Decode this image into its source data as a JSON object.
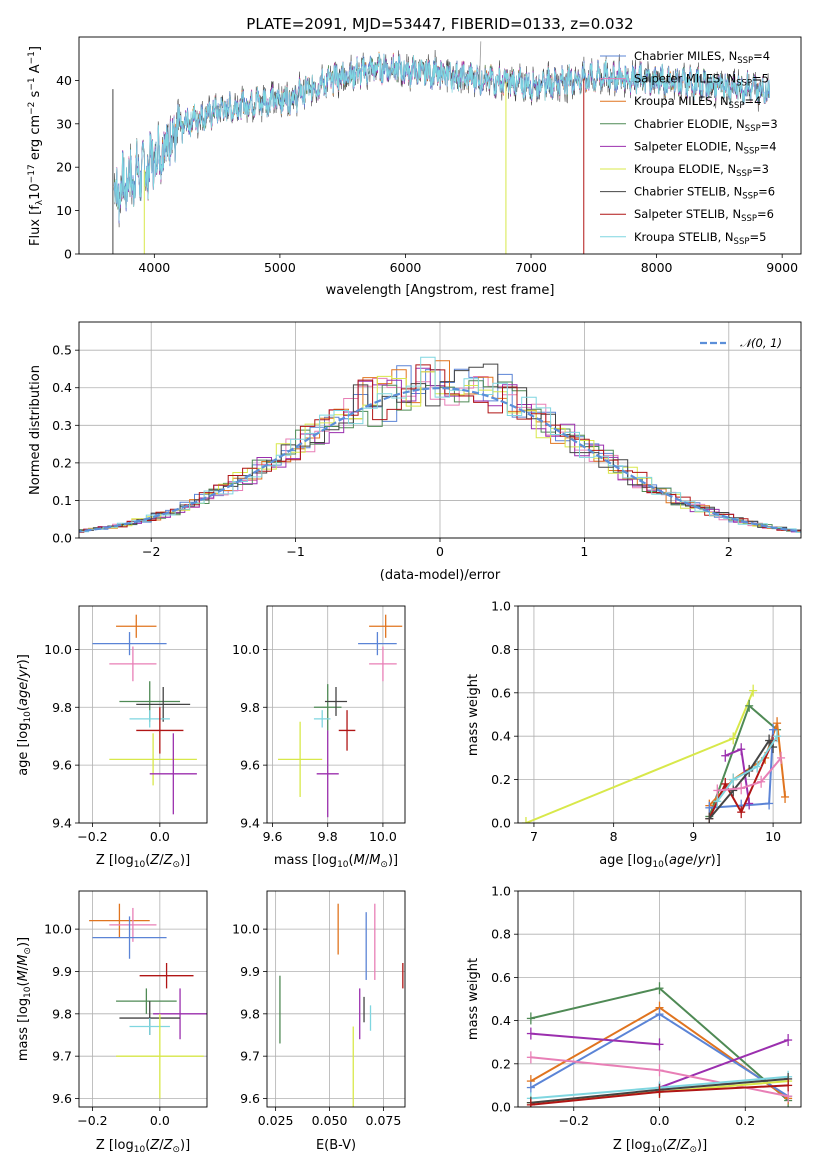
{
  "figure_title": "PLATE=2091, MJD=53447, FIBERID=0133, z=0.032",
  "colors": {
    "Chabrier MILES": "#5b84d6",
    "Salpeter MILES": "#e87fb6",
    "Kroupa MILES": "#e0741f",
    "Chabrier ELODIE": "#4f8a55",
    "Salpeter ELODIE": "#9b2fae",
    "Kroupa ELODIE": "#d8e84a",
    "Chabrier STELIB": "#444444",
    "Salpeter STELIB": "#b01515",
    "Kroupa STELIB": "#7fd6e0",
    "normal_curve": "#5b8fd9"
  },
  "chart_data": [
    {
      "id": "spectrum",
      "type": "line",
      "xlabel": "wavelength [Angstrom, rest frame]",
      "ylabel": "Flux [f_λ 10^-17 erg cm^-2 s^-1 A^-1]",
      "xlim": [
        3400,
        9150
      ],
      "ylim": [
        0,
        50
      ],
      "xticks": [
        4000,
        5000,
        6000,
        7000,
        8000,
        9000
      ],
      "yticks": [
        0,
        10,
        20,
        30,
        40
      ],
      "grid": false,
      "legend_position": "top-right",
      "legend": [
        {
          "label": "Chabrier MILES, N",
          "sub": "SSP",
          "tail": "=4"
        },
        {
          "label": "Salpeter MILES, N",
          "sub": "SSP",
          "tail": "=5"
        },
        {
          "label": "Kroupa MILES, N",
          "sub": "SSP",
          "tail": "=4"
        },
        {
          "label": "Chabrier ELODIE, N",
          "sub": "SSP",
          "tail": "=3"
        },
        {
          "label": "Salpeter ELODIE, N",
          "sub": "SSP",
          "tail": "=4"
        },
        {
          "label": "Kroupa ELODIE, N",
          "sub": "SSP",
          "tail": "=3"
        },
        {
          "label": "Chabrier STELIB, N",
          "sub": "SSP",
          "tail": "=6"
        },
        {
          "label": "Salpeter STELIB, N",
          "sub": "SSP",
          "tail": "=6"
        },
        {
          "label": "Kroupa STELIB, N",
          "sub": "SSP",
          "tail": "=5"
        }
      ],
      "continuum": {
        "x": [
          3680,
          3800,
          3950,
          4100,
          4300,
          4500,
          4800,
          5100,
          5300,
          5500,
          5800,
          6100,
          6400,
          6700,
          7000,
          7300,
          7600,
          8000,
          8400,
          8900
        ],
        "y": [
          14,
          17,
          20,
          26,
          31,
          33,
          35,
          36,
          39,
          41,
          43,
          42,
          41,
          40,
          39,
          40,
          41,
          40,
          39,
          38
        ]
      },
      "data_range": [
        3680,
        8900
      ],
      "dropouts": [
        {
          "x": 3670,
          "series": "Chabrier STELIB"
        },
        {
          "x": 3920,
          "series": "Kroupa ELODIE"
        },
        {
          "x": 6800,
          "series": "Kroupa ELODIE"
        },
        {
          "x": 7420,
          "series": "Salpeter STELIB"
        }
      ],
      "spike": {
        "x": 6590,
        "y": 49
      }
    },
    {
      "id": "residuals",
      "type": "bar",
      "xlabel": "(data-model)/error",
      "ylabel": "Normed distribution",
      "xlim": [
        -2.5,
        2.5
      ],
      "ylim": [
        0,
        0.575
      ],
      "xticks": [
        -2,
        -1,
        0,
        1,
        2
      ],
      "yticks": [
        0.0,
        0.1,
        0.2,
        0.3,
        0.4,
        0.5
      ],
      "grid": true,
      "legend_position": "top-right",
      "legend": [
        "N(0,1)"
      ],
      "bin_width": 0.1
    },
    {
      "id": "age_vs_Z",
      "type": "scatter",
      "xlabel": "Z [log10(Z/Z⊙)]",
      "ylabel": "age [log10(age/yr)]",
      "xlim": [
        -0.24,
        0.14
      ],
      "ylim": [
        9.4,
        10.15
      ],
      "xticks": [
        -0.2,
        0.0
      ],
      "yticks": [
        9.4,
        9.6,
        9.8,
        10.0
      ],
      "grid": true,
      "points": [
        {
          "series": "Kroupa MILES",
          "x": -0.07,
          "y": 10.08,
          "xerr": 0.06,
          "yerr": 0.04
        },
        {
          "series": "Chabrier MILES",
          "x": -0.09,
          "y": 10.02,
          "xerr": 0.11,
          "yerr": 0.04
        },
        {
          "series": "Salpeter MILES",
          "x": -0.08,
          "y": 9.95,
          "xerr": 0.07,
          "yerr": 0.06
        },
        {
          "series": "Chabrier ELODIE",
          "x": -0.03,
          "y": 9.82,
          "xerr": 0.09,
          "yerr": 0.07
        },
        {
          "series": "Chabrier STELIB",
          "x": 0.01,
          "y": 9.81,
          "xerr": 0.08,
          "yerr": 0.06
        },
        {
          "series": "Kroupa STELIB",
          "x": -0.03,
          "y": 9.76,
          "xerr": 0.06,
          "yerr": 0.03
        },
        {
          "series": "Salpeter STELIB",
          "x": 0.0,
          "y": 9.72,
          "xerr": 0.07,
          "yerr": 0.08
        },
        {
          "series": "Kroupa ELODIE",
          "x": -0.02,
          "y": 9.62,
          "xerr": 0.13,
          "yerr": 0.09
        },
        {
          "series": "Salpeter ELODIE",
          "x": 0.04,
          "y": 9.57,
          "xerr": 0.07,
          "yerr": 0.14
        }
      ]
    },
    {
      "id": "age_vs_mass",
      "type": "scatter",
      "xlabel": "mass [log10(M/M⊙)]",
      "ylabel": "",
      "xlim": [
        9.58,
        10.08
      ],
      "ylim": [
        9.4,
        10.15
      ],
      "xticks": [
        9.6,
        9.8,
        10.0
      ],
      "yticks": [
        9.4,
        9.6,
        9.8,
        10.0
      ],
      "grid": true,
      "points": [
        {
          "series": "Kroupa MILES",
          "x": 10.01,
          "y": 10.08,
          "xerr": 0.06,
          "yerr": 0.04
        },
        {
          "series": "Chabrier MILES",
          "x": 9.98,
          "y": 10.02,
          "xerr": 0.07,
          "yerr": 0.04
        },
        {
          "series": "Salpeter MILES",
          "x": 10.0,
          "y": 9.95,
          "xerr": 0.05,
          "yerr": 0.06
        },
        {
          "series": "Chabrier ELODIE",
          "x": 9.8,
          "y": 9.8,
          "xerr": 0.05,
          "yerr": 0.08
        },
        {
          "series": "Chabrier STELIB",
          "x": 9.83,
          "y": 9.82,
          "xerr": 0.04,
          "yerr": 0.05
        },
        {
          "series": "Kroupa STELIB",
          "x": 9.78,
          "y": 9.76,
          "xerr": 0.03,
          "yerr": 0.03
        },
        {
          "series": "Salpeter STELIB",
          "x": 9.87,
          "y": 9.72,
          "xerr": 0.03,
          "yerr": 0.07
        },
        {
          "series": "Kroupa ELODIE",
          "x": 9.7,
          "y": 9.62,
          "xerr": 0.08,
          "yerr": 0.13
        },
        {
          "series": "Salpeter ELODIE",
          "x": 9.8,
          "y": 9.57,
          "xerr": 0.04,
          "yerr": 0.15
        }
      ]
    },
    {
      "id": "massweight_vs_age",
      "type": "line",
      "xlabel": "age [log10(age/yr)]",
      "ylabel": "mass weight",
      "xlim": [
        6.8,
        10.35
      ],
      "ylim": [
        0,
        1.0
      ],
      "xticks": [
        7,
        8,
        9,
        10
      ],
      "yticks": [
        0.0,
        0.2,
        0.4,
        0.6,
        0.8,
        1.0
      ],
      "grid": true,
      "series": [
        {
          "name": "Kroupa ELODIE",
          "x": [
            6.9,
            9.5,
            9.75
          ],
          "y": [
            0.0,
            0.39,
            0.61
          ]
        },
        {
          "name": "Chabrier ELODIE",
          "x": [
            9.2,
            9.7,
            10.05
          ],
          "y": [
            0.03,
            0.54,
            0.43
          ]
        },
        {
          "name": "Kroupa MILES",
          "x": [
            9.2,
            9.5,
            9.9,
            10.05,
            10.15
          ],
          "y": [
            0.08,
            0.2,
            0.3,
            0.46,
            0.12
          ]
        },
        {
          "name": "Chabrier MILES",
          "x": [
            9.2,
            9.6,
            9.95,
            10.0
          ],
          "y": [
            0.07,
            0.08,
            0.09,
            0.43
          ]
        },
        {
          "name": "Salpeter ELODIE",
          "x": [
            9.4,
            9.6,
            9.7
          ],
          "y": [
            0.31,
            0.34,
            0.09
          ]
        },
        {
          "name": "Salpeter STELIB",
          "x": [
            9.2,
            9.4,
            9.6,
            10.0
          ],
          "y": [
            0.02,
            0.18,
            0.05,
            0.38
          ]
        },
        {
          "name": "Chabrier STELIB",
          "x": [
            9.2,
            9.5,
            9.7,
            9.95,
            10.0
          ],
          "y": [
            0.02,
            0.15,
            0.24,
            0.38,
            0.35
          ]
        },
        {
          "name": "Kroupa STELIB",
          "x": [
            9.3,
            9.5,
            9.8,
            10.05
          ],
          "y": [
            0.1,
            0.2,
            0.26,
            0.4
          ]
        },
        {
          "name": "Salpeter MILES",
          "x": [
            9.3,
            9.6,
            9.85,
            10.1
          ],
          "y": [
            0.15,
            0.16,
            0.19,
            0.3
          ]
        }
      ]
    },
    {
      "id": "mass_vs_Z",
      "type": "scatter",
      "xlabel": "Z [log10(Z/Z⊙)]",
      "ylabel": "mass [log10(M/M⊙)]",
      "xlim": [
        -0.24,
        0.14
      ],
      "ylim": [
        9.58,
        10.09
      ],
      "xticks": [
        -0.2,
        0.0
      ],
      "yticks": [
        9.6,
        9.7,
        9.8,
        9.9,
        10.0
      ],
      "grid": true,
      "points": [
        {
          "series": "Kroupa MILES",
          "x": -0.12,
          "y": 10.02,
          "xerr": 0.09,
          "yerr": 0.04
        },
        {
          "series": "Salpeter MILES",
          "x": -0.08,
          "y": 10.01,
          "xerr": 0.07,
          "yerr": 0.04
        },
        {
          "series": "Chabrier MILES",
          "x": -0.09,
          "y": 9.98,
          "xerr": 0.11,
          "yerr": 0.05
        },
        {
          "series": "Salpeter STELIB",
          "x": 0.02,
          "y": 9.89,
          "xerr": 0.08,
          "yerr": 0.03
        },
        {
          "series": "Chabrier ELODIE",
          "x": -0.04,
          "y": 9.83,
          "xerr": 0.09,
          "yerr": 0.03
        },
        {
          "series": "Salpeter ELODIE",
          "x": 0.06,
          "y": 9.8,
          "xerr": 0.08,
          "yerr": 0.06
        },
        {
          "series": "Chabrier STELIB",
          "x": -0.03,
          "y": 9.79,
          "xerr": 0.09,
          "yerr": 0.04
        },
        {
          "series": "Kroupa STELIB",
          "x": -0.03,
          "y": 9.77,
          "xerr": 0.06,
          "yerr": 0.02
        },
        {
          "series": "Kroupa ELODIE",
          "x": 0.0,
          "y": 9.7,
          "xerr": 0.13,
          "yerr": 0.1
        }
      ]
    },
    {
      "id": "mass_vs_EBV",
      "type": "scatter",
      "xlabel": "E(B-V)",
      "ylabel": "",
      "xlim": [
        0.021,
        0.085
      ],
      "ylim": [
        9.58,
        10.09
      ],
      "xticks": [
        0.025,
        0.05,
        0.075
      ],
      "xticklabels": [
        "0.025",
        "0.050",
        "0.075"
      ],
      "yticks": [
        9.6,
        9.7,
        9.8,
        9.9,
        10.0
      ],
      "grid": true,
      "points": [
        {
          "series": "Chabrier ELODIE",
          "x": 0.027,
          "y": 9.81,
          "xerr": 0.0,
          "yerr": 0.08
        },
        {
          "series": "Kroupa MILES",
          "x": 0.054,
          "y": 10.0,
          "xerr": 0.0,
          "yerr": 0.06
        },
        {
          "series": "Kroupa ELODIE",
          "x": 0.061,
          "y": 9.66,
          "xerr": 0.0,
          "yerr": 0.11
        },
        {
          "series": "Salpeter ELODIE",
          "x": 0.064,
          "y": 9.8,
          "xerr": 0.0,
          "yerr": 0.06
        },
        {
          "series": "Chabrier STELIB",
          "x": 0.066,
          "y": 9.81,
          "xerr": 0.0,
          "yerr": 0.03
        },
        {
          "series": "Chabrier MILES",
          "x": 0.067,
          "y": 9.96,
          "xerr": 0.0,
          "yerr": 0.08
        },
        {
          "series": "Kroupa STELIB",
          "x": 0.069,
          "y": 9.79,
          "xerr": 0.0,
          "yerr": 0.03
        },
        {
          "series": "Salpeter MILES",
          "x": 0.071,
          "y": 9.97,
          "xerr": 0.0,
          "yerr": 0.09
        },
        {
          "series": "Salpeter STELIB",
          "x": 0.084,
          "y": 9.89,
          "xerr": 0.0,
          "yerr": 0.03
        }
      ]
    },
    {
      "id": "massweight_vs_Z",
      "type": "line",
      "xlabel": "Z [log10(Z/Z⊙)]",
      "ylabel": "mass weight",
      "xlim": [
        -0.33,
        0.33
      ],
      "ylim": [
        0,
        1.0
      ],
      "xticks": [
        -0.2,
        0.0,
        0.2
      ],
      "yticks": [
        0.0,
        0.2,
        0.4,
        0.6,
        0.8,
        1.0
      ],
      "grid": true,
      "series": [
        {
          "name": "Chabrier ELODIE",
          "x": [
            -0.3,
            0.0,
            0.3
          ],
          "y": [
            0.41,
            0.55,
            0.03
          ]
        },
        {
          "name": "Kroupa MILES",
          "x": [
            -0.3,
            0.0,
            0.3
          ],
          "y": [
            0.12,
            0.46,
            0.04
          ]
        },
        {
          "name": "Chabrier MILES",
          "x": [
            -0.3,
            0.0,
            0.3
          ],
          "y": [
            0.09,
            0.43,
            0.05
          ]
        },
        {
          "name": "Salpeter ELODIE",
          "x": [
            -0.3,
            0.0
          ],
          "y": [
            0.34,
            0.29
          ]
        },
        {
          "name": "Salpeter ELODIE",
          "x": [
            0.0,
            0.3
          ],
          "y": [
            0.09,
            0.31
          ]
        },
        {
          "name": "Salpeter MILES",
          "x": [
            -0.3,
            0.0,
            0.3
          ],
          "y": [
            0.23,
            0.17,
            0.05
          ]
        },
        {
          "name": "Kroupa STELIB",
          "x": [
            -0.3,
            0.0,
            0.3
          ],
          "y": [
            0.04,
            0.09,
            0.14
          ]
        },
        {
          "name": "Kroupa ELODIE",
          "x": [
            -0.3,
            0.0,
            0.3
          ],
          "y": [
            0.02,
            0.07,
            0.12
          ]
        },
        {
          "name": "Chabrier STELIB",
          "x": [
            -0.3,
            0.0,
            0.3
          ],
          "y": [
            0.02,
            0.08,
            0.13
          ]
        },
        {
          "name": "Salpeter STELIB",
          "x": [
            -0.3,
            0.0,
            0.3
          ],
          "y": [
            0.01,
            0.07,
            0.1
          ]
        }
      ]
    }
  ]
}
